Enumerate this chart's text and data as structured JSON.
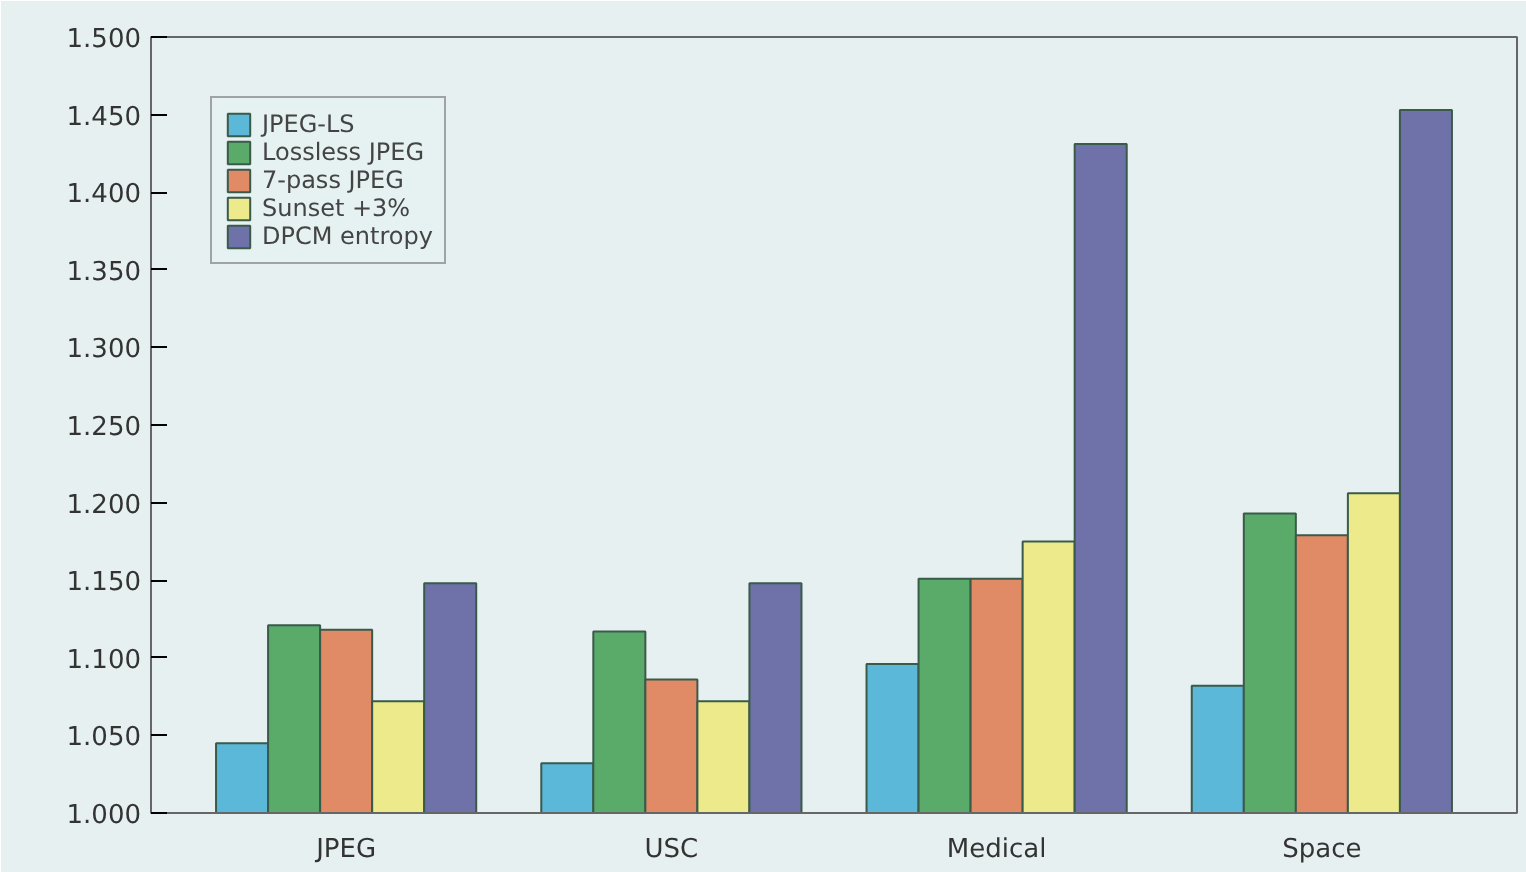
{
  "chart_data": {
    "type": "bar",
    "categories": [
      "JPEG",
      "USC",
      "Medical",
      "Space"
    ],
    "series": [
      {
        "name": "JPEG-LS",
        "color": "#5bb8d8",
        "values": [
          1.045,
          1.032,
          1.096,
          1.082
        ]
      },
      {
        "name": "Lossless JPEG",
        "color": "#5aaa6a",
        "values": [
          1.121,
          1.117,
          1.151,
          1.193
        ]
      },
      {
        "name": "7-pass JPEG",
        "color": "#e08a66",
        "values": [
          1.118,
          1.086,
          1.151,
          1.179
        ]
      },
      {
        "name": "Sunset +3%",
        "color": "#ecea8a",
        "values": [
          1.072,
          1.072,
          1.175,
          1.206
        ]
      },
      {
        "name": "DPCM entropy",
        "color": "#6e72a8",
        "values": [
          1.148,
          1.148,
          1.431,
          1.453
        ]
      }
    ],
    "ylim": [
      1.0,
      1.5
    ],
    "yticks": [
      {
        "value": 1.0,
        "label": "1.000"
      },
      {
        "value": 1.05,
        "label": "1.050"
      },
      {
        "value": 1.1,
        "label": "1.100"
      },
      {
        "value": 1.15,
        "label": "1.150"
      },
      {
        "value": 1.2,
        "label": "1.200"
      },
      {
        "value": 1.25,
        "label": "1.250"
      },
      {
        "value": 1.3,
        "label": "1.300"
      },
      {
        "value": 1.35,
        "label": "1.350"
      },
      {
        "value": 1.4,
        "label": "1.400"
      },
      {
        "value": 1.45,
        "label": "1.450"
      },
      {
        "value": 1.5,
        "label": "1.500"
      }
    ],
    "grid": false,
    "legend": "top left"
  }
}
